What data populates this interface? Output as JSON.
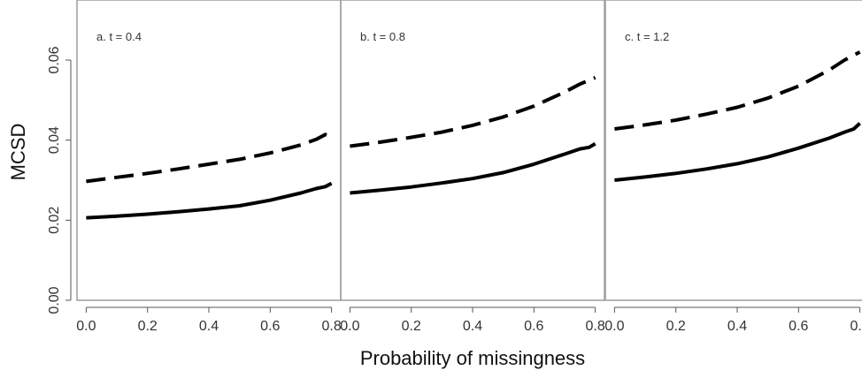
{
  "chart_data": {
    "type": "line",
    "xlabel": "Probability of missingness",
    "ylabel": "MCSD",
    "ylim": [
      0.0,
      0.075
    ],
    "yticks": [
      0.0,
      0.02,
      0.04,
      0.06
    ],
    "ytick_labels": [
      "0.00",
      "0.02",
      "0.04",
      "0.06"
    ],
    "xlim": [
      -0.03,
      0.83
    ],
    "xticks": [
      0.0,
      0.2,
      0.4,
      0.6,
      0.8
    ],
    "xtick_labels": [
      "0.0",
      "0.2",
      "0.4",
      "0.6",
      "0.8"
    ],
    "grid": false,
    "legend": "none",
    "line_color": "#000000",
    "frame_color": "#9e9e9e",
    "panels": [
      {
        "label": "a. t = 0.4",
        "series": [
          {
            "style": "dashed",
            "x": [
              0.0,
              0.1,
              0.2,
              0.3,
              0.4,
              0.5,
              0.6,
              0.7,
              0.75,
              0.78,
              0.8
            ],
            "y": [
              0.0297,
              0.0307,
              0.0317,
              0.0328,
              0.034,
              0.0352,
              0.0368,
              0.0388,
              0.0402,
              0.0414,
              0.041
            ]
          },
          {
            "style": "solid",
            "x": [
              0.0,
              0.1,
              0.2,
              0.3,
              0.4,
              0.5,
              0.6,
              0.7,
              0.75,
              0.78,
              0.8
            ],
            "y": [
              0.0206,
              0.021,
              0.0215,
              0.0221,
              0.0228,
              0.0236,
              0.025,
              0.0268,
              0.0279,
              0.0284,
              0.0292
            ]
          }
        ]
      },
      {
        "label": "b. t = 0.8",
        "series": [
          {
            "style": "dashed",
            "x": [
              0.0,
              0.1,
              0.2,
              0.3,
              0.4,
              0.5,
              0.6,
              0.7,
              0.75,
              0.8
            ],
            "y": [
              0.0385,
              0.0395,
              0.0407,
              0.042,
              0.0437,
              0.0458,
              0.0485,
              0.052,
              0.054,
              0.0556
            ]
          },
          {
            "style": "solid",
            "x": [
              0.0,
              0.1,
              0.2,
              0.3,
              0.4,
              0.5,
              0.6,
              0.7,
              0.75,
              0.78,
              0.8
            ],
            "y": [
              0.0268,
              0.0275,
              0.0283,
              0.0293,
              0.0304,
              0.0319,
              0.034,
              0.0365,
              0.0378,
              0.0382,
              0.0391
            ]
          }
        ]
      },
      {
        "label": "c. t = 1.2",
        "series": [
          {
            "style": "dashed",
            "x": [
              0.0,
              0.1,
              0.2,
              0.3,
              0.4,
              0.5,
              0.6,
              0.7,
              0.75,
              0.8
            ],
            "y": [
              0.0428,
              0.0438,
              0.045,
              0.0465,
              0.0482,
              0.0505,
              0.0535,
              0.0575,
              0.06,
              0.062
            ]
          },
          {
            "style": "solid",
            "x": [
              0.0,
              0.1,
              0.2,
              0.3,
              0.4,
              0.5,
              0.6,
              0.7,
              0.75,
              0.78,
              0.8
            ],
            "y": [
              0.03,
              0.0308,
              0.0317,
              0.0328,
              0.0341,
              0.0358,
              0.038,
              0.0405,
              0.042,
              0.0428,
              0.0442
            ]
          }
        ]
      }
    ]
  }
}
